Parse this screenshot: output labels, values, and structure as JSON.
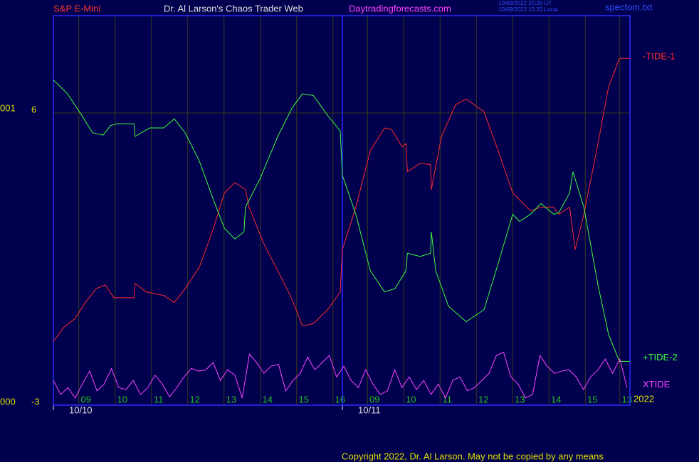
{
  "chart_data": {
    "type": "line",
    "header": {
      "symbol": "S&P E-Mini",
      "site_title": "Dr. Al Larson's Chaos Trader Web",
      "url": "Daytradingforecasts.com",
      "timestamps": [
        "10/09/2022 20:20 UT",
        "10/09/2022 15:20 Local"
      ],
      "file": "spectom.txt"
    },
    "left_labels": [
      "001",
      "000"
    ],
    "year": "2022",
    "copyright": "Copyright 2022, Dr. Al Larson. May not be copied by any means",
    "ylim": [
      -3,
      9
    ],
    "yticks": [
      6,
      -3
    ],
    "xlim": [
      0,
      15.88
    ],
    "xticks": [
      {
        "value": 0.7,
        "label": "09"
      },
      {
        "value": 1.7,
        "label": "10"
      },
      {
        "value": 2.7,
        "label": "11"
      },
      {
        "value": 3.7,
        "label": "12"
      },
      {
        "value": 4.7,
        "label": "13"
      },
      {
        "value": 5.7,
        "label": "14"
      },
      {
        "value": 6.7,
        "label": "15"
      },
      {
        "value": 7.7,
        "label": "16"
      },
      {
        "value": 8.65,
        "label": "09"
      },
      {
        "value": 9.65,
        "label": "10"
      },
      {
        "value": 10.65,
        "label": "11"
      },
      {
        "value": 11.65,
        "label": "12"
      },
      {
        "value": 12.65,
        "label": "13"
      },
      {
        "value": 13.65,
        "label": "14"
      },
      {
        "value": 14.65,
        "label": "15"
      },
      {
        "value": 15.6,
        "label": "13"
      }
    ],
    "dates": [
      {
        "x": 0,
        "label": "10/10"
      },
      {
        "x": 7.96,
        "label": "10/11"
      }
    ],
    "grid": true,
    "series": [
      {
        "name": "-TIDE-1",
        "color": "#ff2a2a",
        "x": [
          0,
          0.29,
          0.59,
          0.88,
          1.18,
          1.43,
          1.67,
          2.22,
          2.25,
          2.55,
          3.04,
          3.33,
          3.63,
          4.02,
          4.41,
          4.71,
          5.0,
          5.29,
          5.39,
          5.78,
          6.18,
          6.57,
          6.86,
          7.16,
          7.55,
          7.9,
          7.96,
          8.33,
          8.73,
          9.12,
          9.31,
          9.61,
          9.71,
          9.75,
          10.1,
          10.39,
          10.41,
          10.69,
          11.08,
          11.37,
          11.86,
          12.25,
          12.65,
          12.84,
          13.14,
          13.43,
          13.78,
          13.92,
          14.22,
          14.37,
          14.61,
          15.0,
          15.29,
          15.59,
          15.88
        ],
        "values": [
          -1.04,
          -0.6,
          -0.34,
          0.16,
          0.59,
          0.7,
          0.31,
          0.31,
          0.75,
          0.49,
          0.38,
          0.16,
          0.59,
          1.25,
          2.45,
          3.54,
          3.86,
          3.64,
          3.1,
          2.01,
          1.14,
          0.27,
          -0.56,
          -0.49,
          -0.06,
          0.49,
          1.79,
          3.1,
          4.84,
          5.54,
          5.5,
          4.95,
          5.06,
          4.19,
          4.45,
          4.41,
          3.64,
          5.28,
          6.26,
          6.43,
          6.04,
          4.84,
          3.54,
          3.32,
          2.99,
          3.1,
          3.1,
          2.88,
          3.1,
          1.79,
          2.88,
          5.06,
          6.8,
          7.68,
          7.68
        ]
      },
      {
        "name": "+TIDE-2",
        "color": "#3cff3c",
        "x": [
          0,
          0.39,
          0.78,
          1.08,
          1.37,
          1.57,
          1.76,
          2.22,
          2.25,
          2.65,
          3.04,
          3.33,
          3.63,
          4.02,
          4.41,
          4.71,
          5.0,
          5.25,
          5.29,
          5.69,
          6.18,
          6.57,
          6.86,
          7.16,
          7.55,
          7.9,
          7.96,
          8.33,
          8.73,
          9.12,
          9.41,
          9.71,
          9.75,
          10.1,
          10.39,
          10.41,
          10.53,
          10.88,
          11.37,
          11.86,
          12.25,
          12.65,
          12.84,
          13.14,
          13.43,
          13.78,
          13.92,
          14.22,
          14.31,
          14.61,
          15.0,
          15.29,
          15.59,
          15.88
        ],
        "values": [
          7.02,
          6.59,
          5.93,
          5.39,
          5.32,
          5.61,
          5.67,
          5.67,
          5.28,
          5.54,
          5.54,
          5.82,
          5.39,
          4.52,
          3.32,
          2.45,
          2.12,
          2.34,
          3.1,
          3.97,
          5.28,
          6.15,
          6.59,
          6.54,
          5.93,
          5.45,
          4.08,
          2.88,
          1.14,
          0.49,
          0.59,
          1.14,
          1.68,
          1.58,
          1.68,
          2.34,
          1.14,
          0.05,
          -0.43,
          -0.06,
          1.36,
          2.88,
          2.66,
          2.88,
          3.21,
          2.88,
          2.93,
          3.54,
          4.19,
          3.1,
          0.7,
          -0.82,
          -1.65,
          -1.65
        ]
      },
      {
        "name": "XTIDE",
        "color": "#ff44ff",
        "x": [
          0,
          0.2,
          0.4,
          0.6,
          0.8,
          1,
          1.2,
          1.4,
          1.6,
          1.8,
          2,
          2.2,
          2.4,
          2.6,
          2.8,
          3,
          3.2,
          3.4,
          3.6,
          3.8,
          4,
          4.2,
          4.4,
          4.6,
          4.8,
          5,
          5.2,
          5.4,
          5.6,
          5.8,
          6,
          6.2,
          6.4,
          6.6,
          6.8,
          7,
          7.2,
          7.4,
          7.6,
          7.8,
          8,
          8.2,
          8.4,
          8.6,
          8.8,
          9,
          9.2,
          9.4,
          9.6,
          9.8,
          10,
          10.2,
          10.4,
          10.6,
          10.8,
          11,
          11.2,
          11.4,
          11.6,
          11.8,
          12,
          12.2,
          12.4,
          12.6,
          12.8,
          13,
          13.2,
          13.4,
          13.6,
          13.8,
          14,
          14.2,
          14.4,
          14.6,
          14.8,
          15,
          15.2,
          15.4,
          15.6,
          15.8
        ],
        "values": [
          -2.24,
          -2.67,
          -2.46,
          -2.78,
          -2.35,
          -1.95,
          -2.56,
          -2.35,
          -1.87,
          -2.46,
          -2.52,
          -2.24,
          -2.67,
          -2.46,
          -2.08,
          -2.35,
          -2.74,
          -2.46,
          -2.13,
          -1.87,
          -1.95,
          -1.91,
          -1.69,
          -2.24,
          -1.91,
          -2.08,
          -2.78,
          -1.43,
          -1.69,
          -2.02,
          -1.8,
          -1.74,
          -2.56,
          -2.24,
          -2.02,
          -1.52,
          -1.91,
          -1.69,
          -1.47,
          -2.13,
          -1.8,
          -2.24,
          -2.46,
          -1.91,
          -2.35,
          -2.67,
          -2.56,
          -1.91,
          -2.46,
          -2.13,
          -2.52,
          -2.24,
          -2.67,
          -2.35,
          -2.78,
          -2.24,
          -2.13,
          -2.56,
          -2.46,
          -2.24,
          -2.02,
          -1.47,
          -1.37,
          -2.13,
          -2.35,
          -2.78,
          -2.67,
          -1.47,
          -1.8,
          -2.02,
          -1.95,
          -1.91,
          -2.13,
          -2.52,
          -2.13,
          -1.91,
          -1.58,
          -2.02,
          -1.58,
          -2.46
        ]
      }
    ]
  }
}
